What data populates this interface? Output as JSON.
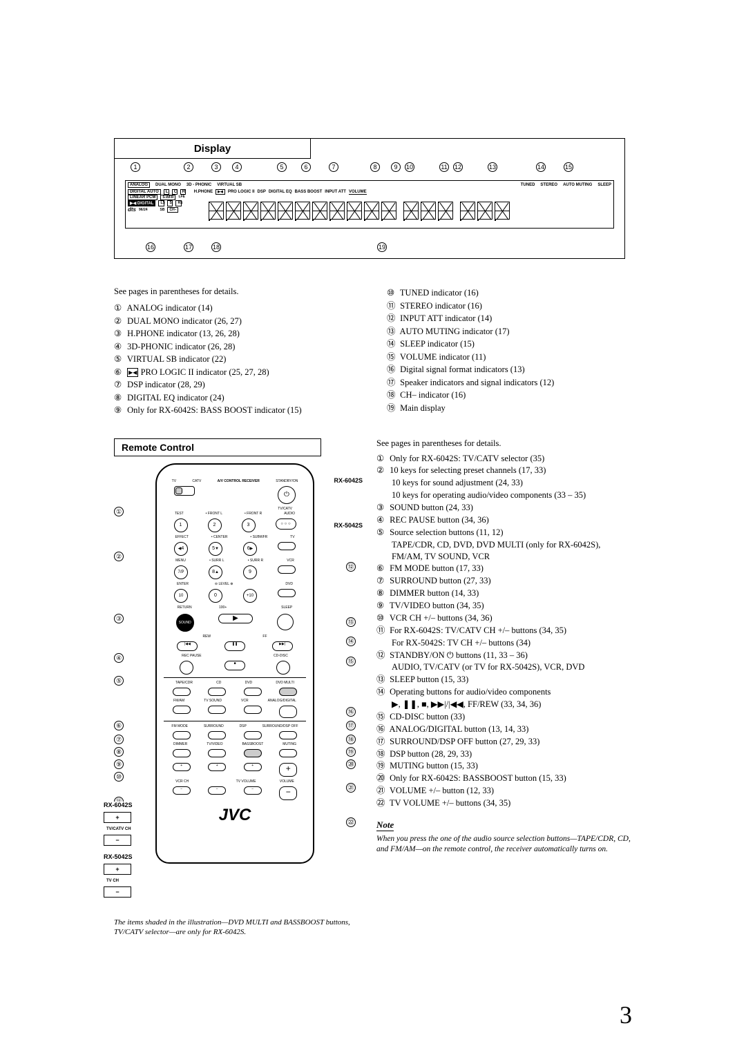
{
  "display": {
    "title": "Display",
    "top_callouts": [
      "1",
      "2",
      "3",
      "4",
      "5",
      "6",
      "7",
      "8",
      "9",
      "10",
      "11",
      "12",
      "13",
      "14",
      "15"
    ],
    "bottom_callouts": [
      "16",
      "17",
      "18",
      "19"
    ],
    "indicators_row1": [
      "ANALOG",
      "DUAL MONO",
      "3D - PHONIC",
      "VIRTUAL SB",
      "TUNED",
      "STEREO",
      "AUTO MUTING",
      "SLEEP"
    ],
    "indicators_row2a": [
      "DIGITAL AUTO",
      "L",
      "C",
      "R"
    ],
    "indicators_row2b": [
      "H.PHONE",
      "PRO LOGIC II",
      "DSP",
      "DIGITAL EQ",
      "BASS BOOST",
      "INPUT ATT",
      "VOLUME"
    ],
    "indicators_row3a": [
      "LINEAR PCM",
      "S.WFR",
      "LFE"
    ],
    "indicators_row4a": [
      "DIGITAL",
      "LS",
      "S",
      "RS"
    ],
    "indicators_row5a": [
      "dts",
      "96/24",
      "SB",
      "CH–"
    ]
  },
  "display_list_intro": "See pages in parentheses for details.",
  "display_left": [
    "ANALOG indicator (14)",
    "DUAL MONO indicator (26, 27)",
    "H.PHONE indicator (13, 26, 28)",
    "3D-PHONIC indicator (26, 28)",
    "VIRTUAL SB indicator (22)",
    "PRO LOGIC II indicator (25, 27, 28)",
    "DSP indicator (28, 29)",
    "DIGITAL EQ indicator (24)",
    "Only for RX-6042S: BASS BOOST indicator (15)"
  ],
  "display_right": [
    "TUNED indicator (16)",
    "STEREO indicator (16)",
    "INPUT ATT indicator (14)",
    "AUTO MUTING indicator (17)",
    "SLEEP indicator (15)",
    "VOLUME indicator (11)",
    "Digital signal format indicators (13)",
    "Speaker indicators and signal indicators (12)",
    "CH– indicator (16)",
    "Main display"
  ],
  "remote": {
    "title": "Remote Control",
    "model_a": "RX-6042S",
    "model_b": "RX-5042S",
    "logo": "JVC",
    "header_label": "A/V CONTROL RECEIVER",
    "row1_labels": [
      "TV",
      "CATV",
      "",
      "STANDBY/ON"
    ],
    "row1_right": "TV/CATV",
    "row2_labels": [
      "TEST",
      "FRONT L",
      "FRONT R",
      "AUDIO"
    ],
    "row3_labels": [
      "EFFECT",
      "CENTER",
      "SUBWFR",
      "TV"
    ],
    "row4_labels": [
      "MENU",
      "SURR L",
      "SURR R",
      "VCR"
    ],
    "row5_labels": [
      "ENTER",
      "LEVEL",
      "",
      "DVD"
    ],
    "row6_labels": [
      "RETURN",
      "100+",
      "",
      "SLEEP"
    ],
    "sound_label": "SOUND",
    "rew_ff": [
      "REW",
      "",
      "FF"
    ],
    "recpause_cddisc": [
      "REC PAUSE",
      "",
      "CD-DISC"
    ],
    "src_row1": [
      "TAPE/CDR",
      "CD",
      "DVD",
      "DVD MULTI"
    ],
    "src_row2": [
      "FM/AM",
      "TV SOUND",
      "VCR",
      "ANALOG/DIGITAL"
    ],
    "ctrl_row1": [
      "FM MODE",
      "SURROUND",
      "DSP",
      "SURROUND/DSP OFF"
    ],
    "ctrl_row2": [
      "DIMMER",
      "TV/VIDEO",
      "BASSBOOST",
      "MUTING"
    ],
    "ch_row": [
      "VCR CH",
      "",
      "TV VOLUME",
      "VOLUME"
    ],
    "ext_6042": "TV/CATV CH",
    "ext_5042": "TV CH",
    "numpad": [
      "1",
      "2",
      "3",
      "4",
      "5",
      "6",
      "7/P",
      "8",
      "9",
      "10",
      "0",
      "+10"
    ],
    "fineprint": "The items shaded in the illustration—DVD MULTI and BASSBOOST buttons, TV/CATV selector—are only for RX-6042S."
  },
  "remote_list_intro": "See pages in parentheses for details.",
  "remote_list": [
    {
      "n": "①",
      "t": "Only for RX-6042S: TV/CATV selector (35)"
    },
    {
      "n": "②",
      "t": "10 keys for selecting preset channels (17, 33)"
    },
    {
      "n": "",
      "t": "10 keys for sound adjustment (24, 33)"
    },
    {
      "n": "",
      "t": "10 keys for operating audio/video components (33 – 35)"
    },
    {
      "n": "③",
      "t": "SOUND button (24, 33)"
    },
    {
      "n": "④",
      "t": "REC PAUSE button (34, 36)"
    },
    {
      "n": "⑤",
      "t": "Source selection buttons (11, 12)"
    },
    {
      "n": "",
      "t": "TAPE/CDR, CD, DVD, DVD MULTI (only for RX-6042S), FM/AM, TV SOUND, VCR"
    },
    {
      "n": "⑥",
      "t": "FM MODE button (17, 33)"
    },
    {
      "n": "⑦",
      "t": "SURROUND button (27, 33)"
    },
    {
      "n": "⑧",
      "t": "DIMMER button (14, 33)"
    },
    {
      "n": "⑨",
      "t": "TV/VIDEO button (34, 35)"
    },
    {
      "n": "⑩",
      "t": "VCR CH +/– buttons (34, 36)"
    },
    {
      "n": "⑪",
      "t": "For RX-6042S: TV/CATV CH +/– buttons (34, 35)"
    },
    {
      "n": "",
      "t": "For RX-5042S: TV CH +/– buttons (34)"
    },
    {
      "n": "⑫",
      "t": "STANDBY/ON ⏻ buttons (11, 33 – 36)"
    },
    {
      "n": "",
      "t": "AUDIO, TV/CATV (or TV for RX-5042S), VCR, DVD"
    },
    {
      "n": "⑬",
      "t": "SLEEP button (15, 33)"
    },
    {
      "n": "⑭",
      "t": "Operating buttons for audio/video components"
    },
    {
      "n": "",
      "t": "▶, ❚❚, ■, ▶▶|/|◀◀, FF/REW (33, 34, 36)"
    },
    {
      "n": "⑮",
      "t": "CD-DISC button (33)"
    },
    {
      "n": "⑯",
      "t": "ANALOG/DIGITAL button (13, 14, 33)"
    },
    {
      "n": "⑰",
      "t": "SURROUND/DSP OFF button (27, 29, 33)"
    },
    {
      "n": "⑱",
      "t": "DSP button (28, 29, 33)"
    },
    {
      "n": "⑲",
      "t": "MUTING button (15, 33)"
    },
    {
      "n": "⑳",
      "t": "Only for RX-6042S: BASSBOOST button (15, 33)"
    },
    {
      "n": "㉑",
      "t": "VOLUME +/– button (12, 33)"
    },
    {
      "n": "㉒",
      "t": "TV VOLUME +/– buttons (34, 35)"
    }
  ],
  "note_heading": "Note",
  "note_text": "When you press the one of the audio source selection buttons—TAPE/CDR, CD, and FM/AM—on the remote control, the receiver automatically turns on.",
  "page_number": "3",
  "circled": [
    "①",
    "②",
    "③",
    "④",
    "⑤",
    "⑥",
    "⑦",
    "⑧",
    "⑨",
    "⑩",
    "⑪",
    "⑫",
    "⑬",
    "⑭",
    "⑮",
    "⑯",
    "⑰",
    "⑱",
    "⑲",
    "⑳",
    "㉑",
    "㉒"
  ]
}
